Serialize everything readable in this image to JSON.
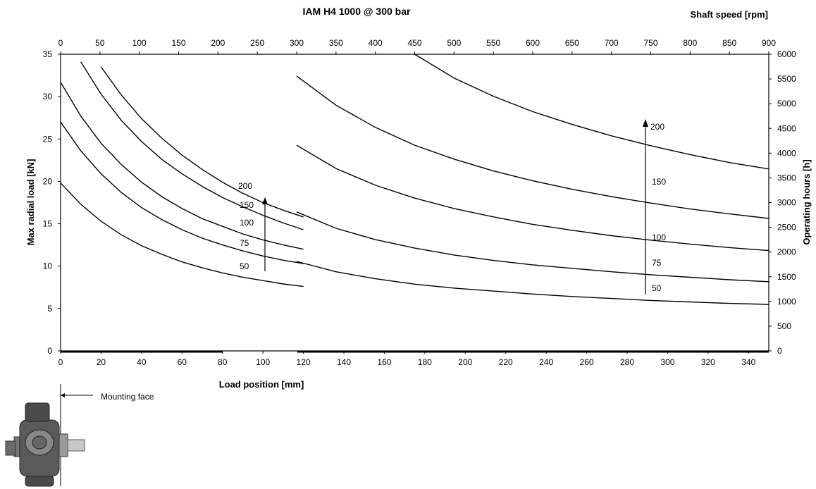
{
  "chart_data": {
    "type": "line",
    "title": "IAM H4 1000 @ 300 bar",
    "xlabel": "Load position [mm]",
    "ylabel": "Max radial load [kN]",
    "x2label": "Shaft speed [rpm]",
    "y2label": "Operating hours [h]",
    "xlim": [
      0,
      350
    ],
    "ylim": [
      0,
      35
    ],
    "x2lim": [
      0,
      900
    ],
    "y2lim": [
      0,
      6000
    ],
    "x_ticks": [
      0,
      20,
      40,
      60,
      80,
      100,
      120,
      140,
      160,
      180,
      200,
      220,
      240,
      260,
      280,
      300,
      320,
      340
    ],
    "y_ticks": [
      0,
      5,
      10,
      15,
      20,
      25,
      30,
      35
    ],
    "x2_ticks": [
      0,
      50,
      100,
      150,
      200,
      250,
      300,
      350,
      400,
      450,
      500,
      550,
      600,
      650,
      700,
      750,
      800,
      850,
      900
    ],
    "y2_ticks": [
      0,
      500,
      1000,
      1500,
      2000,
      2500,
      3000,
      3500,
      4000,
      4500,
      5000,
      5500,
      6000
    ],
    "grid": false,
    "load_curves": {
      "x": [
        0,
        10,
        20,
        30,
        40,
        50,
        60,
        70,
        80,
        90,
        100,
        110,
        120
      ],
      "series": [
        {
          "name": "50",
          "values": [
            19.8,
            17.3,
            15.3,
            13.7,
            12.4,
            11.4,
            10.5,
            9.8,
            9.2,
            8.7,
            8.3,
            7.9,
            7.6
          ]
        },
        {
          "name": "75",
          "values": [
            27.0,
            23.6,
            20.9,
            18.7,
            16.9,
            15.5,
            14.3,
            13.3,
            12.5,
            11.8,
            11.2,
            10.7,
            10.3
          ]
        },
        {
          "name": "100",
          "values": [
            31.7,
            27.7,
            24.5,
            22.0,
            19.9,
            18.2,
            16.8,
            15.6,
            14.7,
            13.8,
            13.1,
            12.5,
            12.0
          ]
        },
        {
          "name": "150",
          "values": [
            null,
            34.1,
            30.3,
            27.2,
            24.7,
            22.6,
            20.9,
            19.4,
            18.1,
            17.0,
            16.0,
            15.1,
            14.3
          ]
        },
        {
          "name": "200",
          "values": [
            null,
            null,
            33.5,
            30.2,
            27.4,
            25.1,
            23.1,
            21.4,
            19.9,
            18.6,
            17.5,
            16.6,
            15.8
          ]
        }
      ],
      "labels": [
        "50",
        "75",
        "100",
        "150",
        "200"
      ]
    },
    "operating_hour_curves": {
      "x_rpm": [
        300,
        350,
        400,
        450,
        500,
        550,
        600,
        650,
        700,
        750,
        800,
        850,
        900
      ],
      "series": [
        {
          "name": "50",
          "values": [
            1810,
            1600,
            1460,
            1350,
            1270,
            1210,
            1150,
            1100,
            1060,
            1020,
            990,
            960,
            940
          ]
        },
        {
          "name": "75",
          "values": [
            2810,
            2480,
            2250,
            2080,
            1940,
            1830,
            1740,
            1670,
            1600,
            1540,
            1490,
            1440,
            1400
          ]
        },
        {
          "name": "100",
          "values": [
            4160,
            3690,
            3350,
            3090,
            2880,
            2710,
            2560,
            2440,
            2330,
            2240,
            2160,
            2090,
            2030
          ]
        },
        {
          "name": "150",
          "values": [
            5560,
            4970,
            4520,
            4160,
            3880,
            3640,
            3440,
            3270,
            3120,
            2990,
            2870,
            2770,
            2680
          ]
        },
        {
          "name": "200",
          "values": [
            null,
            null,
            null,
            6000,
            5520,
            5150,
            4840,
            4580,
            4350,
            4150,
            3970,
            3810,
            3680
          ]
        }
      ],
      "labels": [
        "200",
        "150",
        "100",
        "75",
        "50"
      ]
    },
    "annotations": {
      "mounting_face": "Mounting face"
    }
  }
}
